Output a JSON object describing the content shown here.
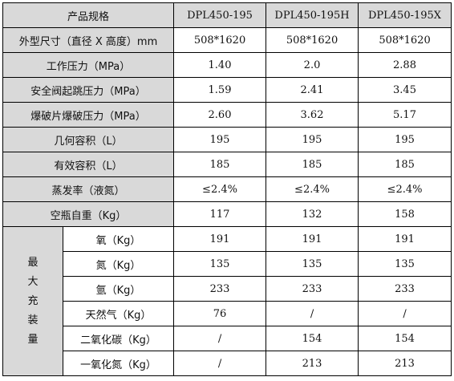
{
  "header": {
    "label": "产品规格",
    "models": [
      "DPL450-195",
      "DPL450-195H",
      "DPL450-195X"
    ]
  },
  "rows": [
    {
      "label": "外型尺寸（直径 X 高度）mm",
      "shaded": true,
      "values": [
        "508*1620",
        "508*1620",
        "508*1620"
      ]
    },
    {
      "label": "工作压力（MPa）",
      "shaded": true,
      "values": [
        "1.40",
        "2.0",
        "2.88"
      ]
    },
    {
      "label": "安全阀起跳压力（MPa）",
      "shaded": true,
      "values": [
        "1.59",
        "2.41",
        "3.45"
      ]
    },
    {
      "label": "爆破片爆破压力（MPa）",
      "shaded": true,
      "values": [
        "2.60",
        "3.62",
        "5.17"
      ]
    },
    {
      "label": "几何容积（L）",
      "shaded": true,
      "values": [
        "195",
        "195",
        "195"
      ]
    },
    {
      "label": "有效容积（L）",
      "shaded": true,
      "values": [
        "185",
        "185",
        "185"
      ]
    },
    {
      "label": "蒸发率（液氮）",
      "shaded": true,
      "values": [
        "≤2.4%",
        "≤2.4%",
        "≤2.4%"
      ]
    },
    {
      "label": "空瓶自重（Kg）",
      "shaded": true,
      "values": [
        "117",
        "132",
        "158"
      ]
    }
  ],
  "fill_group": {
    "label_chars": [
      "最",
      "大",
      "充",
      "装",
      "量"
    ],
    "rows": [
      {
        "label": "氧（Kg）",
        "values": [
          "191",
          "191",
          "191"
        ]
      },
      {
        "label": "氮（Kg）",
        "values": [
          "135",
          "135",
          "135"
        ]
      },
      {
        "label": "氩（Kg）",
        "values": [
          "233",
          "233",
          "233"
        ]
      },
      {
        "label": "天然气（Kg）",
        "values": [
          "76",
          "/",
          "/"
        ]
      },
      {
        "label": "二氧化碳（Kg）",
        "values": [
          "/",
          "154",
          "154"
        ]
      },
      {
        "label": "一氧化氮（Kg）",
        "values": [
          "/",
          "213",
          "213"
        ]
      }
    ]
  },
  "colors": {
    "header_background": "#d9d9d9",
    "border": "#000000"
  }
}
